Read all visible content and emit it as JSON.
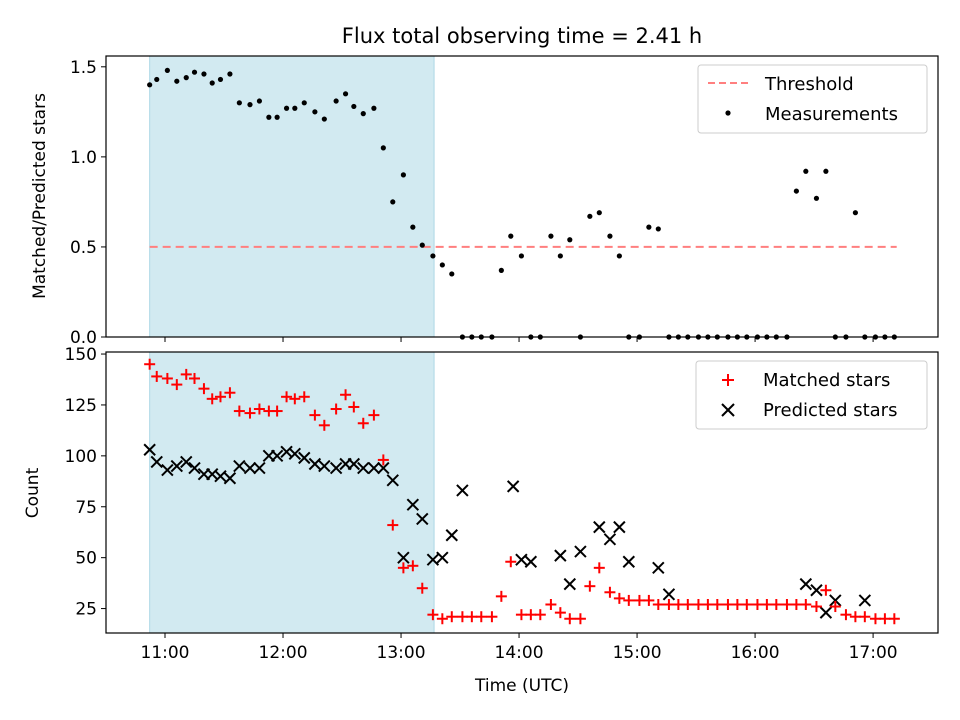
{
  "chart_data": {
    "type": "scatter",
    "title": "Flux total observing time = 2.41 h",
    "xlabel": "Time (UTC)",
    "x_ticks": [
      "11:00",
      "12:00",
      "13:00",
      "14:00",
      "15:00",
      "16:00",
      "17:00"
    ],
    "x_tick_hours": [
      11,
      12,
      13,
      14,
      15,
      16,
      17
    ],
    "xlim_hours": [
      10.5,
      17.55
    ],
    "highlight_span_hours": [
      10.87,
      13.28
    ],
    "colors": {
      "span": "#add8e6",
      "threshold": "#ff7f7f",
      "matched": "#ff0000",
      "predicted": "#000000",
      "measurement": "#000000"
    },
    "panels": [
      {
        "ylabel": "Matched/Predicted stars",
        "ylim": [
          0,
          1.56
        ],
        "yticks": [
          0,
          0.5,
          1.0,
          1.5
        ],
        "ytick_labels": [
          "0.0",
          "0.5",
          "1.0",
          "1.5"
        ],
        "legend_position": "upper right",
        "legend": [
          "Threshold",
          "Measurements"
        ],
        "threshold": {
          "value": 0.5,
          "x_range_hours": [
            10.87,
            17.2
          ]
        },
        "measurements": {
          "x": [
            10.87,
            10.93,
            11.02,
            11.1,
            11.18,
            11.25,
            11.33,
            11.4,
            11.47,
            11.55,
            11.63,
            11.72,
            11.8,
            11.88,
            11.95,
            12.03,
            12.1,
            12.18,
            12.27,
            12.35,
            12.45,
            12.53,
            12.6,
            12.68,
            12.77,
            12.85,
            12.93,
            13.02,
            13.1,
            13.18,
            13.27,
            13.35,
            13.43,
            13.52,
            13.6,
            13.68,
            13.77,
            13.85,
            13.93,
            14.02,
            14.1,
            14.18,
            14.27,
            14.35,
            14.43,
            14.52,
            14.6,
            14.68,
            14.77,
            14.85,
            14.93,
            15.02,
            15.1,
            15.18,
            15.27,
            15.35,
            15.43,
            15.52,
            15.6,
            15.68,
            15.77,
            15.85,
            15.93,
            16.02,
            16.1,
            16.18,
            16.27,
            16.35,
            16.43,
            16.52,
            16.6,
            16.68,
            16.77,
            16.85,
            16.93,
            17.02,
            17.1,
            17.18
          ],
          "y": [
            1.4,
            1.43,
            1.48,
            1.42,
            1.44,
            1.47,
            1.46,
            1.41,
            1.43,
            1.46,
            1.3,
            1.29,
            1.31,
            1.22,
            1.22,
            1.27,
            1.27,
            1.3,
            1.25,
            1.21,
            1.31,
            1.35,
            1.28,
            1.24,
            1.27,
            1.05,
            0.75,
            0.9,
            0.61,
            0.51,
            0.45,
            0.4,
            0.35,
            0.0,
            0.0,
            0.0,
            0.0,
            0.37,
            0.56,
            0.45,
            0.0,
            0.0,
            0.56,
            0.45,
            0.54,
            0.0,
            0.67,
            0.69,
            0.56,
            0.45,
            0.0,
            0.0,
            0.61,
            0.6,
            0.0,
            0.0,
            0.0,
            0.0,
            0.0,
            0.0,
            0.0,
            0.0,
            0.0,
            0.0,
            0.0,
            0.0,
            0.0,
            0.81,
            0.92,
            0.77,
            0.92,
            0.0,
            0.0,
            0.69,
            0.0,
            0.0,
            0.0,
            0.0
          ]
        }
      },
      {
        "ylabel": "Count",
        "ylim": [
          13,
          151
        ],
        "yticks": [
          25,
          50,
          75,
          100,
          125,
          150
        ],
        "ytick_labels": [
          "25",
          "50",
          "75",
          "100",
          "125",
          "150"
        ],
        "legend_position": "upper right",
        "legend": [
          "Matched stars",
          "Predicted stars"
        ],
        "matched": {
          "x": [
            10.87,
            10.93,
            11.02,
            11.1,
            11.18,
            11.25,
            11.33,
            11.4,
            11.47,
            11.55,
            11.63,
            11.72,
            11.8,
            11.88,
            11.95,
            12.03,
            12.1,
            12.18,
            12.27,
            12.35,
            12.45,
            12.53,
            12.6,
            12.68,
            12.77,
            12.85,
            12.93,
            13.02,
            13.1,
            13.18,
            13.27,
            13.35,
            13.43,
            13.52,
            13.6,
            13.68,
            13.77,
            13.85,
            13.93,
            14.02,
            14.1,
            14.18,
            14.27,
            14.35,
            14.43,
            14.52,
            14.6,
            14.68,
            14.77,
            14.85,
            14.93,
            15.02,
            15.1,
            15.18,
            15.27,
            15.35,
            15.43,
            15.52,
            15.6,
            15.68,
            15.77,
            15.85,
            15.93,
            16.02,
            16.1,
            16.18,
            16.27,
            16.35,
            16.43,
            16.52,
            16.6,
            16.68,
            16.77,
            16.85,
            16.93,
            17.02,
            17.1,
            17.18
          ],
          "y": [
            145,
            139,
            138,
            135,
            140,
            138,
            133,
            128,
            129,
            131,
            122,
            121,
            123,
            122,
            122,
            129,
            128,
            129,
            120,
            115,
            123,
            130,
            124,
            116,
            120,
            98,
            66,
            45,
            46,
            35,
            22,
            20,
            21,
            21,
            21,
            21,
            21,
            31,
            48,
            22,
            22,
            22,
            27,
            23,
            20,
            20,
            36,
            45,
            33,
            30,
            29,
            29,
            29,
            27,
            27,
            27,
            27,
            27,
            27,
            27,
            27,
            27,
            27,
            27,
            27,
            27,
            27,
            27,
            27,
            26,
            34,
            26,
            22,
            21,
            21,
            20,
            20,
            20
          ]
        },
        "predicted": {
          "x": [
            10.87,
            10.93,
            11.02,
            11.1,
            11.18,
            11.25,
            11.33,
            11.4,
            11.47,
            11.55,
            11.63,
            11.72,
            11.8,
            11.88,
            11.95,
            12.03,
            12.1,
            12.18,
            12.27,
            12.35,
            12.45,
            12.53,
            12.6,
            12.68,
            12.77,
            12.85,
            12.93,
            13.02,
            13.1,
            13.18,
            13.27,
            13.35,
            13.43,
            13.52,
            13.95,
            14.02,
            14.1,
            14.35,
            14.43,
            14.52,
            14.68,
            14.77,
            14.85,
            14.93,
            15.18,
            15.27,
            16.43,
            16.52,
            16.6,
            16.68,
            16.93
          ],
          "y": [
            103,
            97,
            93,
            95,
            97,
            94,
            91,
            91,
            90,
            89,
            95,
            94,
            94,
            100,
            100,
            102,
            101,
            99,
            96,
            95,
            94,
            96,
            96,
            94,
            94,
            94,
            88,
            50,
            76,
            69,
            49,
            50,
            61,
            83,
            85,
            49,
            48,
            51,
            37,
            53,
            65,
            59,
            65,
            48,
            45,
            32,
            37,
            34,
            23,
            29,
            29
          ]
        }
      }
    ]
  }
}
